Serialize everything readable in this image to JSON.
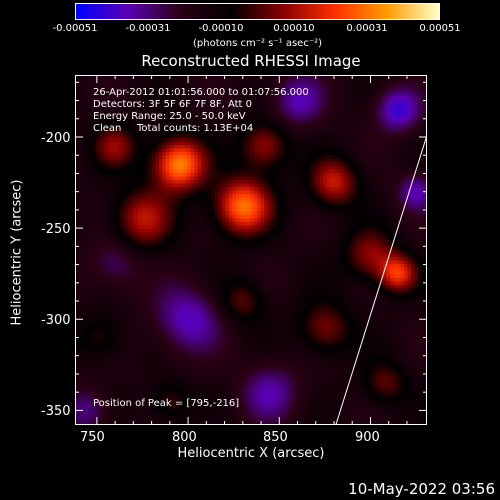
{
  "colorbar": {
    "ticks": [
      "-0.00051",
      "-0.00031",
      "-0.00010",
      "0.00010",
      "0.00031",
      "0.00051"
    ],
    "units": "(photons cm⁻² s⁻¹ asec⁻²)",
    "range": [
      -0.00051,
      0.00051
    ],
    "colors": [
      "#0000ff",
      "#5a00b4",
      "#2a0014",
      "#000000",
      "#8a0000",
      "#ff3000",
      "#ff9c00",
      "#ffffc8"
    ]
  },
  "info": {
    "line1": "26-Apr-2012 01:01:56.000 to 01:07:56.000",
    "line2": "Detectors: 3F 5F 6F 7F 8F, Att 0",
    "line3": "Energy Range: 25.0 - 50.0 keV",
    "line4_a": "Clean",
    "line4_b": "Total counts: 1.13E+04",
    "peak": "Position of Peak = [795,-216]"
  },
  "datestamp": "10-May-2022 03:56",
  "chart_data": {
    "type": "heatmap",
    "title": "Reconstructed RHESSI Image",
    "xlabel": "Heliocentric X (arcsec)",
    "ylabel": "Heliocentric Y (arcsec)",
    "xlim": [
      738,
      931
    ],
    "ylim": [
      -358,
      -166
    ],
    "x_ticks": [
      "750",
      "800",
      "850",
      "900"
    ],
    "y_ticks": [
      "-200",
      "-250",
      "-300",
      "-350"
    ],
    "peak": [
      795,
      -216
    ],
    "limb_line": [
      [
        881,
        -358
      ],
      [
        931,
        -199
      ]
    ],
    "blobs": [
      {
        "x": 795,
        "y": -215,
        "amp": 0.0005,
        "w": 14
      },
      {
        "x": 775,
        "y": -245,
        "amp": 0.00028,
        "w": 16
      },
      {
        "x": 760,
        "y": -205,
        "amp": 0.00022,
        "w": 12
      },
      {
        "x": 830,
        "y": -238,
        "amp": 0.00046,
        "w": 15
      },
      {
        "x": 842,
        "y": -205,
        "amp": 0.00026,
        "w": 13
      },
      {
        "x": 830,
        "y": -290,
        "amp": 0.00018,
        "w": 12
      },
      {
        "x": 880,
        "y": -225,
        "amp": 0.0003,
        "w": 13
      },
      {
        "x": 900,
        "y": -265,
        "amp": 0.00024,
        "w": 14
      },
      {
        "x": 915,
        "y": -275,
        "amp": 0.00035,
        "w": 10
      },
      {
        "x": 875,
        "y": -305,
        "amp": 0.00022,
        "w": 14
      },
      {
        "x": 908,
        "y": -335,
        "amp": 0.00018,
        "w": 12
      },
      {
        "x": 790,
        "y": -345,
        "amp": 0.00016,
        "w": 11
      },
      {
        "x": 752,
        "y": -310,
        "amp": 0.00014,
        "w": 12
      },
      {
        "x": 800,
        "y": -300,
        "amp": -0.00022,
        "w": 18
      },
      {
        "x": 760,
        "y": -270,
        "amp": -0.00014,
        "w": 14
      },
      {
        "x": 860,
        "y": -180,
        "amp": -0.0002,
        "w": 14
      },
      {
        "x": 915,
        "y": -185,
        "amp": -0.00026,
        "w": 12
      },
      {
        "x": 845,
        "y": -340,
        "amp": -0.00018,
        "w": 16
      },
      {
        "x": 925,
        "y": -230,
        "amp": -0.0002,
        "w": 10
      },
      {
        "x": 745,
        "y": -350,
        "amp": -0.00016,
        "w": 12
      }
    ]
  }
}
